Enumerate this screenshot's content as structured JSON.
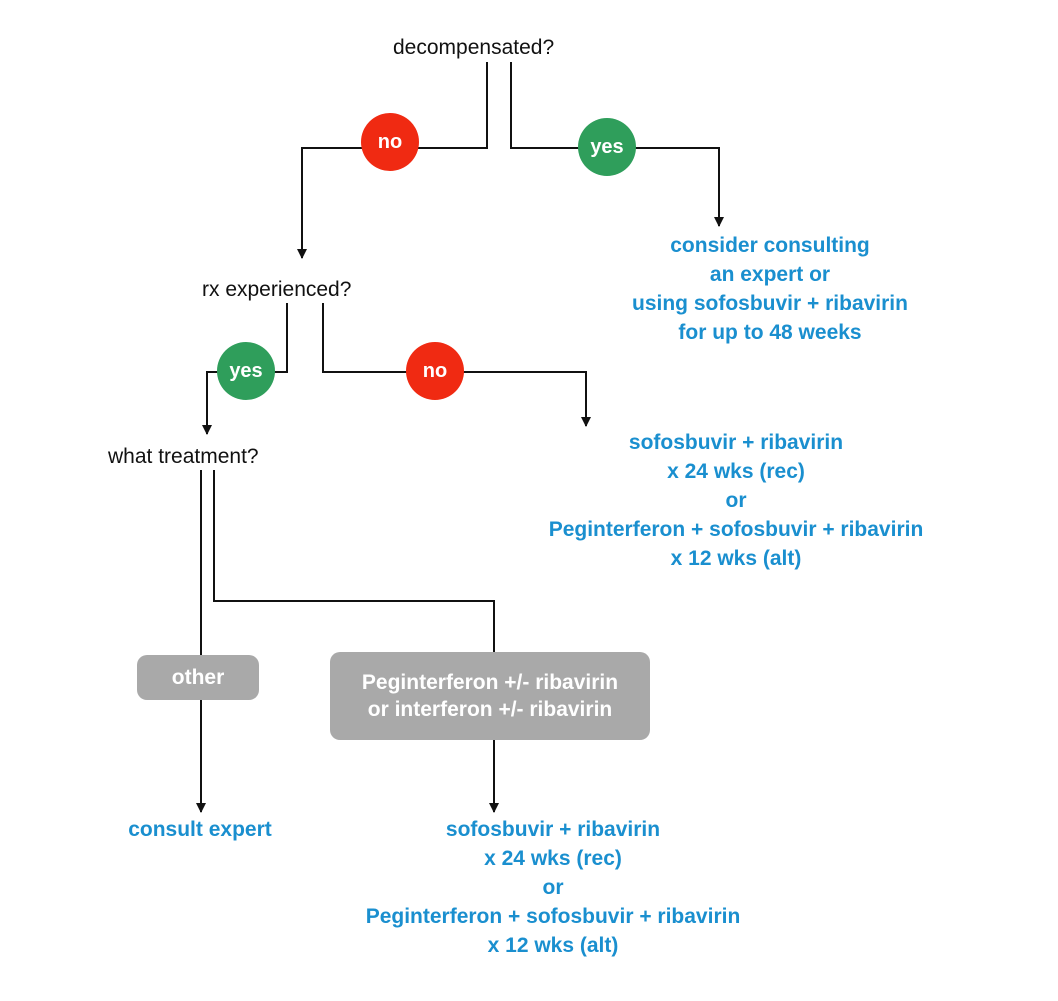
{
  "colors": {
    "no": "#f02a12",
    "yes": "#2f9e5b",
    "outcome": "#1a8fcf",
    "box": "#a9a9a9",
    "line": "#111111"
  },
  "questions": {
    "decompensated": "decompensated?",
    "rx_experienced": "rx experienced?",
    "what_treatment": "what treatment?"
  },
  "decisions": {
    "decompensated_no": "no",
    "decompensated_yes": "yes",
    "rx_yes": "yes",
    "rx_no": "no"
  },
  "options": {
    "other": "other",
    "peginterferon": [
      "Peginterferon +/- ribavirin",
      "or interferon +/- ribavirin"
    ]
  },
  "outcomes": {
    "decompensated_yes": [
      "consider consulting",
      "an expert or",
      "using sofosbuvir + ribavirin",
      "for up to 48 weeks"
    ],
    "rx_naive": [
      "sofosbuvir + ribavirin",
      "x 24 wks (rec)",
      "or",
      "Peginterferon + sofosbuvir + ribavirin",
      "x 12 wks (alt)"
    ],
    "other": [
      "consult expert"
    ],
    "peginterferon": [
      "sofosbuvir + ribavirin",
      "x 24 wks (rec)",
      "or",
      "Peginterferon + sofosbuvir + ribavirin",
      "x 12 wks (alt)"
    ]
  }
}
